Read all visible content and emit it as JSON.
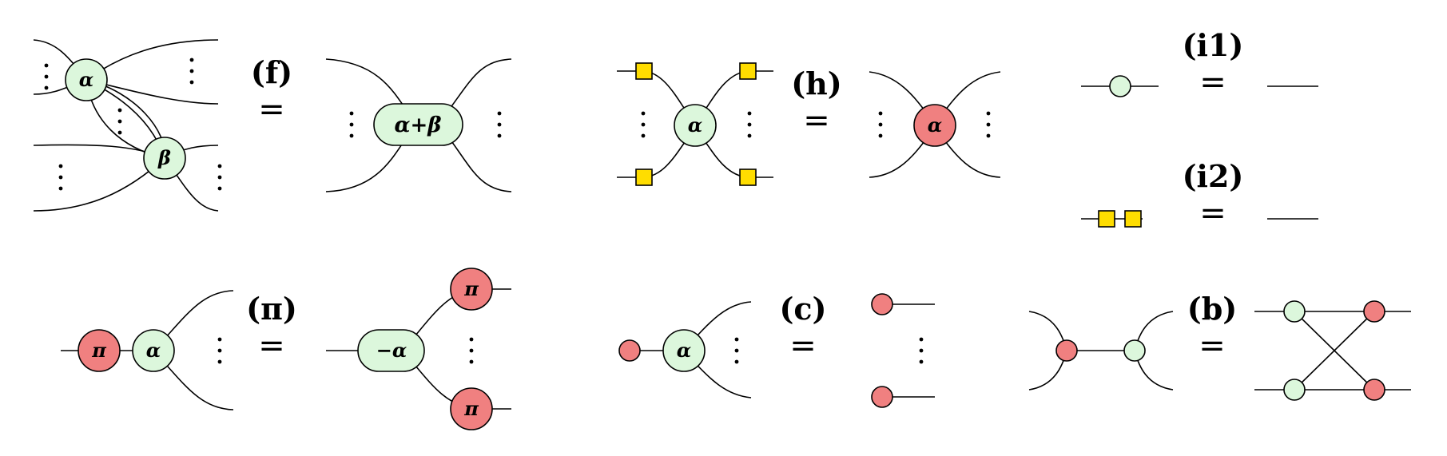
{
  "equals_sign": "=",
  "rules": {
    "f": {
      "label": "(f)",
      "lhs_spider_top": "α",
      "lhs_spider_bottom": "β",
      "rhs_spider": "α+β"
    },
    "h": {
      "label": "(h)",
      "lhs_spider": "α",
      "rhs_spider": "α"
    },
    "i1": {
      "label": "(i1)"
    },
    "i2": {
      "label": "(i2)"
    },
    "pi": {
      "label": "(π)",
      "lhs_red": "π",
      "lhs_green": "α",
      "rhs_green": "−α",
      "rhs_red_top": "π",
      "rhs_red_bottom": "π"
    },
    "c": {
      "label": "(c)",
      "lhs_green": "α"
    },
    "b": {
      "label": "(b)"
    }
  },
  "colors": {
    "green_spider": "#dcf7dc",
    "red_spider": "#f08080",
    "hadamard_box": "#ffdd00"
  }
}
